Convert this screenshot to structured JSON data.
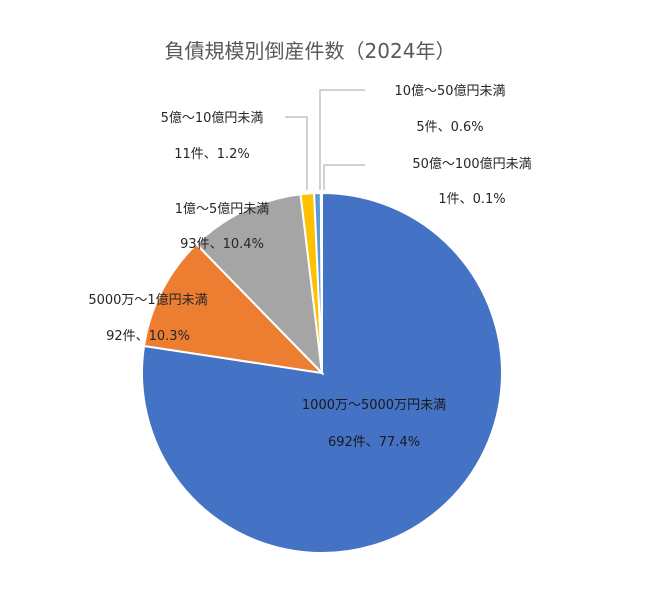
{
  "chart_data": {
    "type": "pie",
    "title": "負債規模別倒産件数（2024年）",
    "start_angle_deg": 0,
    "direction": "clockwise",
    "slices": [
      {
        "name": "1000万～5000万円未満",
        "count_label": "692件、77.4%",
        "value": 77.4,
        "color": "#4472C4"
      },
      {
        "name": "5000万～1億円未満",
        "count_label": "92件、10.3%",
        "value": 10.3,
        "color": "#ED7D31"
      },
      {
        "name": "1億～5億円未満",
        "count_label": "93件、10.4%",
        "value": 10.4,
        "color": "#A5A5A5"
      },
      {
        "name": "5億～10億円未満",
        "count_label": "11件、1.2%",
        "value": 1.2,
        "color": "#FFC000"
      },
      {
        "name": "10億～50億円未満",
        "count_label": "5件、0.6%",
        "value": 0.6,
        "color": "#5B9BD5"
      },
      {
        "name": "50億～100億円未満",
        "count_label": "1件、0.1%",
        "value": 0.1,
        "color": "#70AD47"
      }
    ]
  }
}
